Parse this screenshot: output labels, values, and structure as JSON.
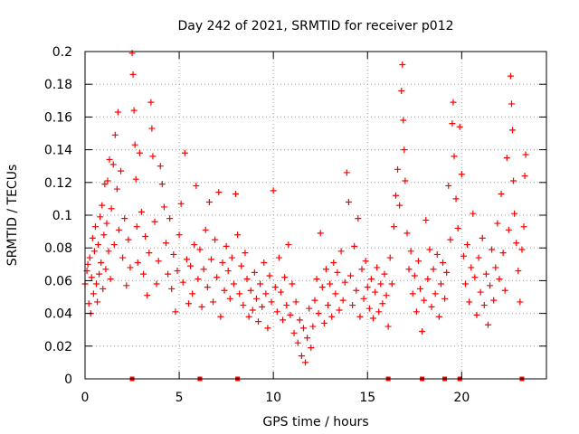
{
  "chart_data": {
    "type": "scatter",
    "title": "Day 242 of 2021, SRMTID for receiver p012",
    "xlabel": "GPS time / hours",
    "ylabel": "SRMTID / TECUs",
    "xlim": [
      0,
      24.5
    ],
    "ylim": [
      0,
      0.2
    ],
    "grid": true,
    "marker": "+",
    "color": "#ff0000",
    "x_ticks": [
      0,
      5,
      10,
      15,
      20
    ],
    "x_tick_labels": [
      "0",
      "5",
      "10",
      "15",
      "20"
    ],
    "y_ticks": [
      0,
      0.02,
      0.04,
      0.06,
      0.08,
      0.1,
      0.12,
      0.14,
      0.16,
      0.18,
      0.2
    ],
    "y_tick_labels": [
      "0",
      "0.02",
      "0.04",
      "0.06",
      "0.08",
      "0.1",
      "0.12",
      "0.14",
      "0.16",
      "0.18",
      "0.2"
    ],
    "zero_markers_x": [
      2.5,
      6.1,
      8.1,
      16.1,
      17.9,
      19.1,
      19.9,
      23.2
    ],
    "series": [
      {
        "name": "SRMTID",
        "points": [
          [
            0.0,
            0.058
          ],
          [
            0.1,
            0.066
          ],
          [
            0.15,
            0.07
          ],
          [
            0.2,
            0.046
          ],
          [
            0.25,
            0.074
          ],
          [
            0.3,
            0.04
          ],
          [
            0.35,
            0.062
          ],
          [
            0.4,
            0.086
          ],
          [
            0.45,
            0.052
          ],
          [
            0.5,
            0.078
          ],
          [
            0.55,
            0.093
          ],
          [
            0.6,
            0.058
          ],
          [
            0.65,
            0.047
          ],
          [
            0.7,
            0.082
          ],
          [
            0.75,
            0.064
          ],
          [
            0.8,
            0.099
          ],
          [
            0.85,
            0.071
          ],
          [
            0.9,
            0.106
          ],
          [
            0.95,
            0.055
          ],
          [
            1.0,
            0.088
          ],
          [
            1.05,
            0.119
          ],
          [
            1.1,
            0.067
          ],
          [
            1.15,
            0.095
          ],
          [
            1.2,
            0.121
          ],
          [
            1.25,
            0.078
          ],
          [
            1.3,
            0.134
          ],
          [
            1.35,
            0.061
          ],
          [
            1.4,
            0.104
          ],
          [
            1.5,
            0.131
          ],
          [
            1.55,
            0.082
          ],
          [
            1.6,
            0.149
          ],
          [
            1.7,
            0.116
          ],
          [
            1.75,
            0.163
          ],
          [
            1.8,
            0.091
          ],
          [
            1.9,
            0.127
          ],
          [
            2.0,
            0.074
          ],
          [
            2.1,
            0.098
          ],
          [
            2.2,
            0.057
          ],
          [
            2.3,
            0.085
          ],
          [
            2.4,
            0.068
          ],
          [
            2.5,
            0.199
          ],
          [
            2.55,
            0.186
          ],
          [
            2.6,
            0.164
          ],
          [
            2.65,
            0.143
          ],
          [
            2.7,
            0.122
          ],
          [
            2.75,
            0.093
          ],
          [
            2.8,
            0.071
          ],
          [
            2.9,
            0.138
          ],
          [
            3.0,
            0.102
          ],
          [
            3.1,
            0.064
          ],
          [
            3.2,
            0.087
          ],
          [
            3.3,
            0.051
          ],
          [
            3.4,
            0.077
          ],
          [
            3.5,
            0.169
          ],
          [
            3.55,
            0.153
          ],
          [
            3.6,
            0.136
          ],
          [
            3.7,
            0.096
          ],
          [
            3.8,
            0.058
          ],
          [
            3.9,
            0.072
          ],
          [
            4.0,
            0.13
          ],
          [
            4.1,
            0.119
          ],
          [
            4.2,
            0.105
          ],
          [
            4.3,
            0.083
          ],
          [
            4.4,
            0.064
          ],
          [
            4.5,
            0.098
          ],
          [
            4.6,
            0.055
          ],
          [
            4.7,
            0.076
          ],
          [
            4.8,
            0.041
          ],
          [
            4.9,
            0.066
          ],
          [
            5.0,
            0.088
          ],
          [
            5.1,
            0.107
          ],
          [
            5.2,
            0.059
          ],
          [
            5.3,
            0.138
          ],
          [
            5.4,
            0.073
          ],
          [
            5.5,
            0.046
          ],
          [
            5.6,
            0.069
          ],
          [
            5.7,
            0.052
          ],
          [
            5.8,
            0.082
          ],
          [
            5.9,
            0.118
          ],
          [
            6.0,
            0.061
          ],
          [
            6.1,
            0.079
          ],
          [
            6.2,
            0.044
          ],
          [
            6.3,
            0.067
          ],
          [
            6.4,
            0.091
          ],
          [
            6.5,
            0.056
          ],
          [
            6.6,
            0.108
          ],
          [
            6.7,
            0.073
          ],
          [
            6.8,
            0.047
          ],
          [
            6.9,
            0.085
          ],
          [
            7.0,
            0.062
          ],
          [
            7.1,
            0.114
          ],
          [
            7.2,
            0.038
          ],
          [
            7.3,
            0.071
          ],
          [
            7.4,
            0.054
          ],
          [
            7.5,
            0.081
          ],
          [
            7.6,
            0.066
          ],
          [
            7.7,
            0.049
          ],
          [
            7.8,
            0.074
          ],
          [
            7.9,
            0.058
          ],
          [
            8.0,
            0.113
          ],
          [
            8.1,
            0.088
          ],
          [
            8.2,
            0.052
          ],
          [
            8.3,
            0.069
          ],
          [
            8.4,
            0.045
          ],
          [
            8.5,
            0.077
          ],
          [
            8.6,
            0.061
          ],
          [
            8.7,
            0.038
          ],
          [
            8.8,
            0.054
          ],
          [
            8.9,
            0.042
          ],
          [
            9.0,
            0.065
          ],
          [
            9.1,
            0.049
          ],
          [
            9.2,
            0.035
          ],
          [
            9.3,
            0.058
          ],
          [
            9.4,
            0.044
          ],
          [
            9.5,
            0.071
          ],
          [
            9.6,
            0.052
          ],
          [
            9.7,
            0.031
          ],
          [
            9.8,
            0.063
          ],
          [
            9.9,
            0.047
          ],
          [
            10.0,
            0.115
          ],
          [
            10.1,
            0.056
          ],
          [
            10.2,
            0.041
          ],
          [
            10.3,
            0.074
          ],
          [
            10.4,
            0.053
          ],
          [
            10.5,
            0.036
          ],
          [
            10.6,
            0.062
          ],
          [
            10.7,
            0.045
          ],
          [
            10.8,
            0.082
          ],
          [
            10.9,
            0.039
          ],
          [
            11.0,
            0.058
          ],
          [
            11.1,
            0.028
          ],
          [
            11.2,
            0.047
          ],
          [
            11.3,
            0.022
          ],
          [
            11.4,
            0.036
          ],
          [
            11.5,
            0.014
          ],
          [
            11.6,
            0.031
          ],
          [
            11.7,
            0.01
          ],
          [
            11.8,
            0.025
          ],
          [
            11.9,
            0.043
          ],
          [
            12.0,
            0.019
          ],
          [
            12.1,
            0.032
          ],
          [
            12.2,
            0.048
          ],
          [
            12.3,
            0.061
          ],
          [
            12.4,
            0.04
          ],
          [
            12.5,
            0.089
          ],
          [
            12.6,
            0.056
          ],
          [
            12.7,
            0.034
          ],
          [
            12.8,
            0.067
          ],
          [
            12.9,
            0.045
          ],
          [
            13.0,
            0.058
          ],
          [
            13.1,
            0.038
          ],
          [
            13.2,
            0.071
          ],
          [
            13.3,
            0.052
          ],
          [
            13.4,
            0.065
          ],
          [
            13.5,
            0.042
          ],
          [
            13.6,
            0.078
          ],
          [
            13.7,
            0.048
          ],
          [
            13.8,
            0.059
          ],
          [
            13.9,
            0.126
          ],
          [
            14.0,
            0.108
          ],
          [
            14.1,
            0.063
          ],
          [
            14.2,
            0.045
          ],
          [
            14.3,
            0.081
          ],
          [
            14.4,
            0.054
          ],
          [
            14.5,
            0.098
          ],
          [
            14.6,
            0.038
          ],
          [
            14.7,
            0.067
          ],
          [
            14.8,
            0.049
          ],
          [
            14.9,
            0.072
          ],
          [
            15.0,
            0.056
          ],
          [
            15.1,
            0.043
          ],
          [
            15.2,
            0.061
          ],
          [
            15.3,
            0.037
          ],
          [
            15.4,
            0.053
          ],
          [
            15.5,
            0.068
          ],
          [
            15.6,
            0.041
          ],
          [
            15.7,
            0.058
          ],
          [
            15.8,
            0.046
          ],
          [
            15.9,
            0.064
          ],
          [
            16.0,
            0.051
          ],
          [
            16.1,
            0.032
          ],
          [
            16.2,
            0.074
          ],
          [
            16.3,
            0.058
          ],
          [
            16.4,
            0.093
          ],
          [
            16.5,
            0.112
          ],
          [
            16.6,
            0.128
          ],
          [
            16.7,
            0.106
          ],
          [
            16.8,
            0.176
          ],
          [
            16.85,
            0.192
          ],
          [
            16.9,
            0.158
          ],
          [
            16.95,
            0.14
          ],
          [
            17.0,
            0.121
          ],
          [
            17.1,
            0.089
          ],
          [
            17.2,
            0.067
          ],
          [
            17.3,
            0.078
          ],
          [
            17.4,
            0.052
          ],
          [
            17.5,
            0.063
          ],
          [
            17.6,
            0.041
          ],
          [
            17.7,
            0.072
          ],
          [
            17.8,
            0.055
          ],
          [
            17.9,
            0.029
          ],
          [
            18.0,
            0.048
          ],
          [
            18.1,
            0.097
          ],
          [
            18.2,
            0.061
          ],
          [
            18.3,
            0.079
          ],
          [
            18.4,
            0.044
          ],
          [
            18.5,
            0.067
          ],
          [
            18.6,
            0.052
          ],
          [
            18.7,
            0.076
          ],
          [
            18.8,
            0.038
          ],
          [
            18.9,
            0.058
          ],
          [
            19.0,
            0.071
          ],
          [
            19.1,
            0.049
          ],
          [
            19.2,
            0.065
          ],
          [
            19.3,
            0.118
          ],
          [
            19.4,
            0.085
          ],
          [
            19.5,
            0.156
          ],
          [
            19.55,
            0.169
          ],
          [
            19.6,
            0.136
          ],
          [
            19.7,
            0.11
          ],
          [
            19.8,
            0.092
          ],
          [
            19.9,
            0.154
          ],
          [
            20.0,
            0.125
          ],
          [
            20.1,
            0.075
          ],
          [
            20.2,
            0.058
          ],
          [
            20.3,
            0.082
          ],
          [
            20.4,
            0.047
          ],
          [
            20.5,
            0.068
          ],
          [
            20.6,
            0.101
          ],
          [
            20.7,
            0.062
          ],
          [
            20.8,
            0.039
          ],
          [
            20.9,
            0.074
          ],
          [
            21.0,
            0.053
          ],
          [
            21.1,
            0.086
          ],
          [
            21.2,
            0.045
          ],
          [
            21.3,
            0.064
          ],
          [
            21.4,
            0.033
          ],
          [
            21.5,
            0.057
          ],
          [
            21.6,
            0.079
          ],
          [
            21.7,
            0.048
          ],
          [
            21.8,
            0.068
          ],
          [
            21.9,
            0.095
          ],
          [
            22.0,
            0.061
          ],
          [
            22.1,
            0.113
          ],
          [
            22.2,
            0.077
          ],
          [
            22.3,
            0.054
          ],
          [
            22.4,
            0.135
          ],
          [
            22.5,
            0.091
          ],
          [
            22.6,
            0.185
          ],
          [
            22.65,
            0.168
          ],
          [
            22.7,
            0.152
          ],
          [
            22.75,
            0.121
          ],
          [
            22.8,
            0.101
          ],
          [
            22.9,
            0.083
          ],
          [
            23.0,
            0.066
          ],
          [
            23.1,
            0.047
          ],
          [
            23.2,
            0.079
          ],
          [
            23.3,
            0.093
          ],
          [
            23.35,
            0.124
          ],
          [
            23.4,
            0.137
          ]
        ]
      }
    ]
  }
}
